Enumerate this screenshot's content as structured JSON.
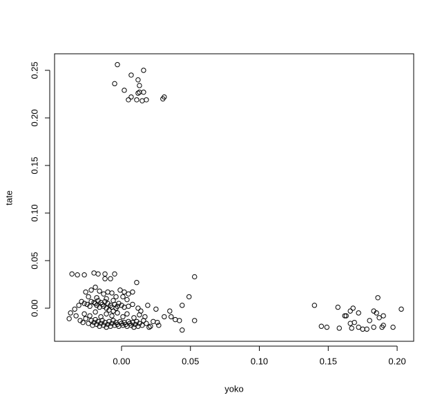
{
  "chart_data": {
    "type": "scatter",
    "xlabel": "yoko",
    "ylabel": "tate",
    "xlim": [
      -0.0486,
      0.212
    ],
    "ylim": [
      -0.0348,
      0.2674
    ],
    "xticks": [
      {
        "value": 0,
        "label": "0.00"
      },
      {
        "value": 0.05,
        "label": "0.05"
      },
      {
        "value": 0.1,
        "label": "0.10"
      },
      {
        "value": 0.15,
        "label": "0.15"
      },
      {
        "value": 0.2,
        "label": "0.20"
      }
    ],
    "yticks": [
      {
        "value": 0,
        "label": "0.00"
      },
      {
        "value": 0.05,
        "label": "0.05"
      },
      {
        "value": 0.1,
        "label": "0.10"
      },
      {
        "value": 0.15,
        "label": "0.15"
      },
      {
        "value": 0.2,
        "label": "0.20"
      },
      {
        "value": 0.25,
        "label": "0.25"
      }
    ],
    "grid": false,
    "color": "#000000",
    "x": [
      -0.003,
      0.016,
      0.007,
      -0.005,
      0.012,
      0.013,
      0.002,
      0.013,
      0.016,
      0.012,
      0.007,
      0.031,
      0.03,
      0.005,
      0.011,
      0.015,
      0.018,
      0.14,
      0.157,
      0.145,
      0.149,
      0.158,
      0.162,
      0.163,
      0.166,
      0.168,
      0.166,
      0.169,
      0.167,
      0.172,
      0.172,
      0.175,
      0.178,
      0.18,
      0.183,
      0.183,
      0.186,
      0.185,
      0.187,
      0.189,
      0.19,
      0.19,
      0.197,
      0.203,
      -0.036,
      -0.032,
      -0.027,
      -0.02,
      -0.017,
      -0.012,
      -0.008,
      -0.012,
      -0.005,
      0.053,
      0.049,
      0.011,
      0.044,
      0.044,
      0.053,
      0.042,
      0.039,
      0.035,
      0.036,
      0.031,
      0.026,
      0.027,
      0.025,
      0.02,
      0.019,
      -0.038,
      -0.037,
      -0.034,
      -0.033,
      -0.031,
      -0.029,
      -0.027,
      -0.025,
      -0.023,
      -0.022,
      -0.02,
      -0.019,
      -0.018,
      -0.017,
      -0.016,
      -0.015,
      -0.014,
      -0.013,
      -0.012,
      -0.011,
      -0.01,
      -0.009,
      -0.008,
      -0.007,
      -0.006,
      -0.005,
      -0.004,
      -0.003,
      -0.002,
      0.0,
      0.002,
      0.005,
      0.008,
      0.012,
      0.014,
      -0.026,
      -0.022,
      -0.019,
      -0.016,
      -0.013,
      -0.01,
      -0.007,
      -0.004,
      -0.001,
      0.002,
      0.005,
      0.008,
      -0.024,
      -0.018,
      -0.011,
      -0.006,
      0.001,
      0.004,
      -0.03,
      -0.028,
      -0.026,
      -0.024,
      -0.022,
      -0.021,
      -0.02,
      -0.019,
      -0.018,
      -0.017,
      -0.016,
      -0.015,
      -0.014,
      -0.013,
      -0.012,
      -0.011,
      -0.01,
      -0.009,
      -0.008,
      -0.007,
      -0.006,
      -0.005,
      -0.004,
      -0.003,
      -0.002,
      -0.001,
      0.0,
      0.001,
      0.002,
      0.003,
      0.004,
      0.005,
      0.006,
      0.007,
      0.008,
      0.009,
      0.01,
      0.011,
      0.012,
      0.013,
      0.015,
      0.016,
      0.018,
      0.021,
      0.023,
      -0.027,
      -0.023,
      -0.019,
      -0.015,
      -0.011,
      -0.007,
      -0.003,
      0.001,
      0.004,
      0.009,
      0.013,
      0.017
    ],
    "y": [
      0.256,
      0.25,
      0.245,
      0.236,
      0.24,
      0.234,
      0.229,
      0.227,
      0.227,
      0.226,
      0.222,
      0.222,
      0.22,
      0.219,
      0.219,
      0.218,
      0.219,
      0.003,
      0.001,
      -0.019,
      -0.02,
      -0.021,
      -0.008,
      -0.008,
      -0.003,
      0.0,
      -0.016,
      -0.015,
      -0.021,
      -0.005,
      -0.02,
      -0.022,
      -0.022,
      -0.013,
      -0.02,
      -0.003,
      0.011,
      -0.005,
      -0.01,
      -0.02,
      -0.018,
      -0.008,
      -0.02,
      -0.001,
      0.036,
      0.035,
      0.035,
      0.037,
      0.036,
      0.036,
      0.031,
      0.031,
      0.036,
      0.033,
      0.012,
      0.027,
      0.003,
      -0.023,
      -0.013,
      -0.013,
      -0.012,
      -0.003,
      -0.009,
      -0.009,
      -0.015,
      -0.018,
      -0.001,
      -0.02,
      0.003,
      -0.011,
      -0.005,
      -0.001,
      -0.008,
      0.003,
      0.007,
      0.005,
      0.004,
      0.002,
      0.007,
      0.006,
      0.005,
      0.003,
      0.008,
      0.001,
      0.006,
      0.004,
      0.002,
      0.007,
      0.0,
      0.005,
      -0.002,
      0.003,
      0.001,
      -0.003,
      0.004,
      0.0,
      0.002,
      0.005,
      0.003,
      0.001,
      0.002,
      0.004,
      0.0,
      -0.003,
      0.017,
      0.019,
      0.022,
      0.018,
      0.015,
      0.017,
      0.016,
      0.012,
      0.019,
      0.017,
      0.015,
      0.017,
      0.012,
      0.011,
      0.01,
      0.008,
      0.012,
      0.009,
      -0.013,
      -0.015,
      -0.011,
      -0.016,
      -0.013,
      -0.018,
      -0.015,
      -0.012,
      -0.017,
      -0.014,
      -0.019,
      -0.016,
      -0.013,
      -0.018,
      -0.015,
      -0.02,
      -0.017,
      -0.014,
      -0.019,
      -0.016,
      -0.013,
      -0.018,
      -0.015,
      -0.017,
      -0.019,
      -0.014,
      -0.016,
      -0.018,
      -0.015,
      -0.017,
      -0.019,
      -0.014,
      -0.016,
      -0.018,
      -0.015,
      -0.02,
      -0.017,
      -0.014,
      -0.019,
      -0.016,
      -0.018,
      -0.013,
      -0.016,
      -0.019,
      -0.014,
      -0.006,
      -0.008,
      -0.004,
      -0.009,
      -0.006,
      -0.008,
      -0.005,
      -0.009,
      -0.006,
      -0.01,
      -0.007,
      -0.009
    ]
  }
}
